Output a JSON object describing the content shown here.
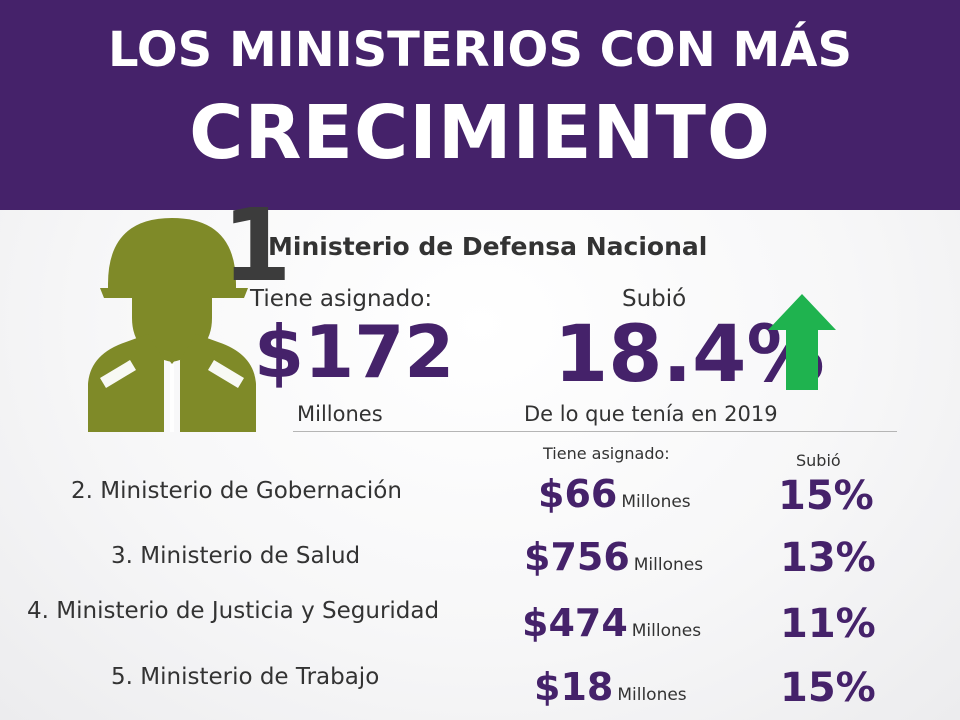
{
  "header": {
    "title_line1": "LOS MINISTERIOS CON MÁS",
    "title_line2": "CRECIMIENTO",
    "background_color": "#45226a"
  },
  "featured": {
    "rank": "1",
    "icon": "soldier-icon",
    "icon_color": "#7f8a28",
    "name": "Ministerio de Defensa Nacional",
    "assigned_label": "Tiene asignado:",
    "amount": "$172",
    "amount_unit": "Millones",
    "growth_label": "Subió",
    "growth": "18.4%",
    "growth_note": "De lo que tenía en 2019",
    "arrow_icon": "arrow-up-icon",
    "arrow_color": "#1fb34f"
  },
  "table": {
    "assigned_header": "Tiene asignado:",
    "growth_header": "Subió",
    "rows": [
      {
        "name": "2. Ministerio de Gobernación",
        "amount": "$66",
        "unit": "Millones",
        "growth": "15%"
      },
      {
        "name": "3. Ministerio de Salud",
        "amount": "$756",
        "unit": "Millones",
        "growth": "13%"
      },
      {
        "name": "4. Ministerio de Justicia y Seguridad",
        "amount": "$474",
        "unit": "Millones",
        "growth": "11%"
      },
      {
        "name": "5. Ministerio de Trabajo",
        "amount": "$18",
        "unit": "Millones",
        "growth": "15%"
      }
    ]
  }
}
